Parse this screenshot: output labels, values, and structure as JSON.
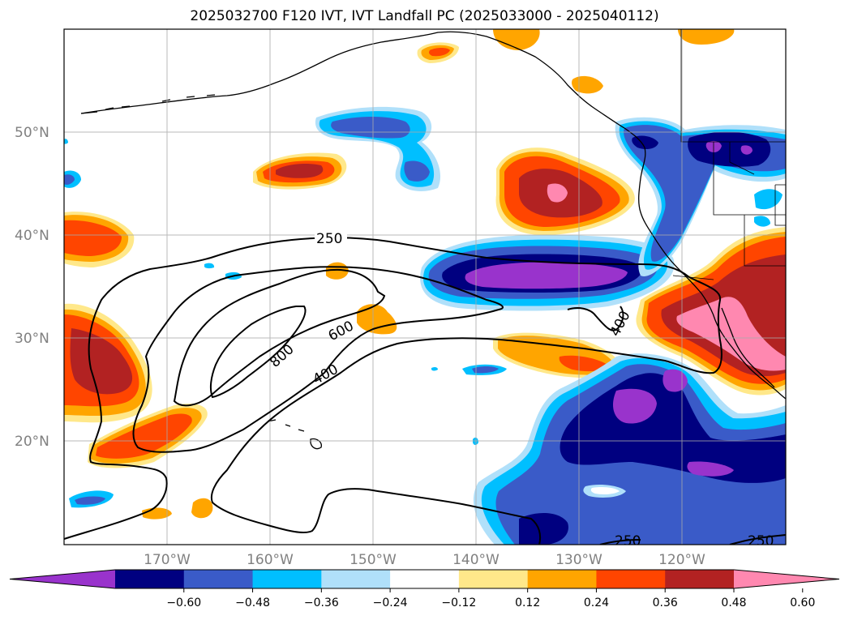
{
  "title": "2025032700 F120 IVT, IVT Landfall PC (2025033000 - 2025040112)",
  "map": {
    "lon_range": [
      -180,
      -110
    ],
    "lat_range": [
      10,
      60
    ],
    "lat_labels": [
      "20°N",
      "30°N",
      "40°N",
      "50°N"
    ],
    "lon_labels": [
      "170°W",
      "160°W",
      "150°W",
      "140°W",
      "130°W",
      "120°W"
    ],
    "grid": true,
    "contour_labels": [
      "250",
      "600",
      "800",
      "400",
      "400",
      "250",
      "250"
    ]
  },
  "colorbar": {
    "ticks": [
      "−0.60",
      "−0.48",
      "−0.36",
      "−0.24",
      "−0.12",
      "0.12",
      "0.24",
      "0.36",
      "0.48",
      "0.60"
    ],
    "colors": [
      "#9933cc",
      "#000080",
      "#3a5bc8",
      "#00bfff",
      "#b0e0fa",
      "#ffffff",
      "#ffe88a",
      "#ffa500",
      "#ff4500",
      "#b22222",
      "#ff88b0"
    ],
    "extend": "both"
  },
  "palette": {
    "purple": "#9933cc",
    "navy": "#000080",
    "royal": "#3a5bc8",
    "cyan": "#00bfff",
    "lightblue": "#b0e0fa",
    "yellow": "#ffe88a",
    "orange": "#ffa500",
    "redorange": "#ff4500",
    "firebrick": "#b22222",
    "pink": "#ff88b0"
  }
}
